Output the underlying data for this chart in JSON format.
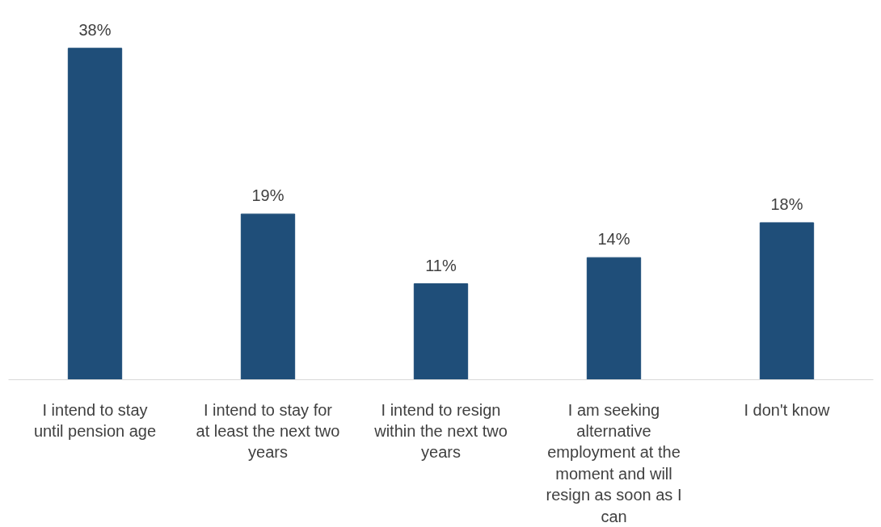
{
  "chart_data": {
    "type": "bar",
    "categories": [
      "I intend to stay until pension age",
      "I intend to stay for at least the next two years",
      "I intend to resign within the next two years",
      "I am seeking alternative employment at the moment and will resign as soon as I can",
      "I don't know"
    ],
    "values": [
      38,
      19,
      11,
      14,
      18
    ],
    "color": "#1f4e79",
    "value_labels": [
      "38%",
      "19%",
      "11%",
      "14%",
      "18%"
    ],
    "grid": false
  }
}
